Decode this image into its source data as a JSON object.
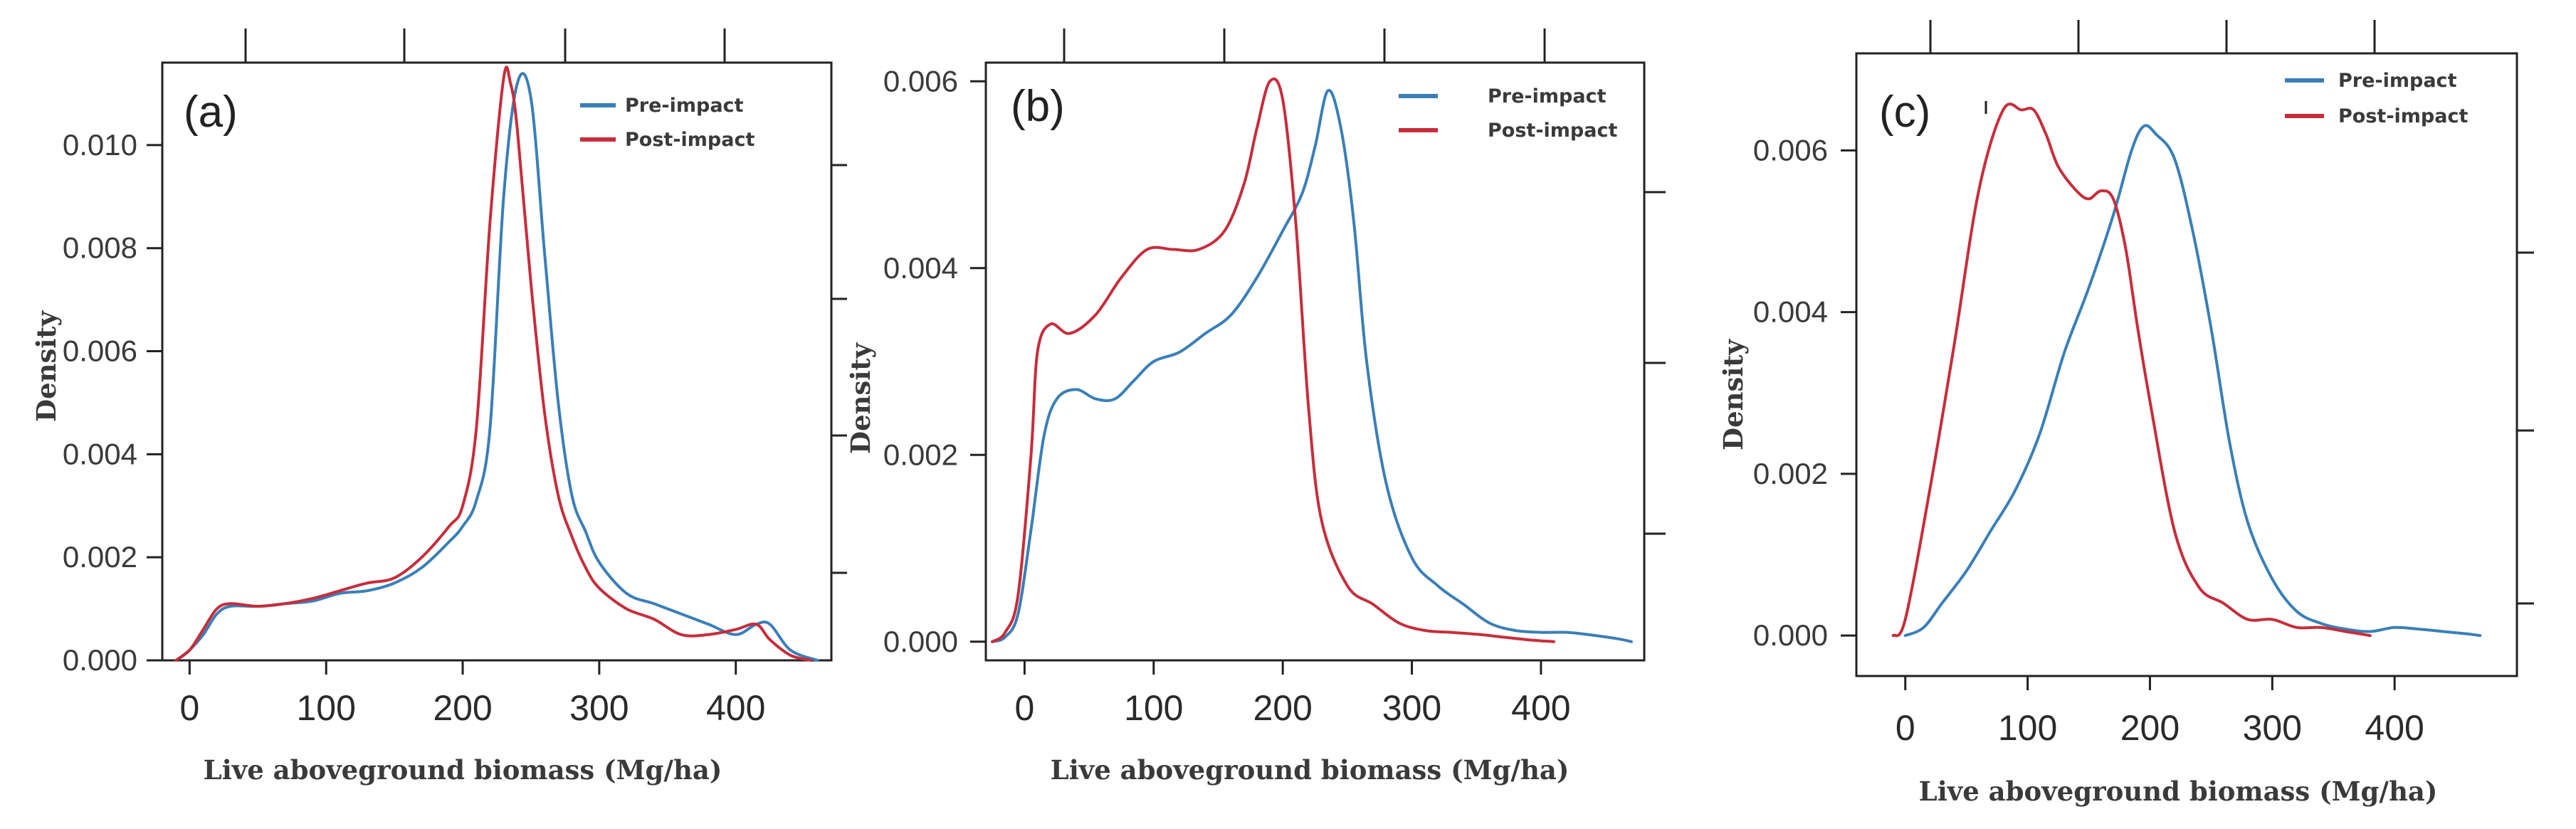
{
  "chart_data": [
    {
      "type": "line",
      "panel_label": "(a)",
      "xlabel": "Live aboveground biomass (Mg/ha)",
      "ylabel": "Density",
      "xlim": [
        -20,
        470
      ],
      "ylim": [
        0,
        0.0116
      ],
      "x_ticks": [
        0,
        100,
        200,
        300,
        400
      ],
      "y_ticks": [
        0.0,
        0.002,
        0.004,
        0.006,
        0.008,
        0.01
      ],
      "y_tick_labels": [
        "0.000",
        "0.002",
        "0.004",
        "0.006",
        "0.008",
        "0.010"
      ],
      "legend": [
        "Pre-impact",
        "Post-impact"
      ],
      "series": [
        {
          "name": "Pre-impact",
          "color": "#3a7fb8",
          "x": [
            -10,
            0,
            10,
            20,
            30,
            50,
            70,
            90,
            110,
            130,
            150,
            170,
            190,
            200,
            210,
            220,
            230,
            240,
            250,
            260,
            270,
            280,
            290,
            300,
            320,
            340,
            360,
            380,
            400,
            415,
            425,
            440,
            460
          ],
          "y": [
            0.0,
            0.0002,
            0.0005,
            0.0009,
            0.00105,
            0.00105,
            0.0011,
            0.00115,
            0.0013,
            0.00135,
            0.0015,
            0.0018,
            0.0023,
            0.0026,
            0.0031,
            0.0045,
            0.009,
            0.0112,
            0.0109,
            0.0079,
            0.005,
            0.0032,
            0.0025,
            0.0019,
            0.0013,
            0.0011,
            0.0009,
            0.0007,
            0.0005,
            0.0007,
            0.0007,
            0.0002,
            0.0
          ]
        },
        {
          "name": "Post-impact",
          "color": "#c72d3b",
          "x": [
            -10,
            0,
            10,
            20,
            30,
            50,
            70,
            90,
            110,
            130,
            150,
            170,
            190,
            200,
            210,
            220,
            230,
            235,
            240,
            250,
            260,
            270,
            280,
            290,
            300,
            320,
            340,
            360,
            380,
            400,
            415,
            425,
            440,
            455
          ],
          "y": [
            0.0,
            0.0002,
            0.0006,
            0.001,
            0.0011,
            0.00105,
            0.0011,
            0.0012,
            0.00135,
            0.0015,
            0.0016,
            0.002,
            0.0026,
            0.003,
            0.0045,
            0.0085,
            0.0113,
            0.0112,
            0.0103,
            0.0073,
            0.0048,
            0.0032,
            0.0024,
            0.0018,
            0.0014,
            0.001,
            0.0008,
            0.0005,
            0.0005,
            0.0006,
            0.0007,
            0.0004,
            0.0001,
            0.0
          ]
        }
      ]
    },
    {
      "type": "line",
      "panel_label": "(b)",
      "xlabel": "Live aboveground biomass (Mg/ha)",
      "ylabel": "Density",
      "xlim": [
        -30,
        480
      ],
      "ylim": [
        -0.0002,
        0.0062
      ],
      "x_ticks": [
        0,
        100,
        200,
        300,
        400
      ],
      "y_ticks": [
        0.0,
        0.002,
        0.004,
        0.006
      ],
      "y_tick_labels": [
        "0.000",
        "0.002",
        "0.004",
        "0.006"
      ],
      "legend": [
        "Pre-impact",
        "Post-impact"
      ],
      "series": [
        {
          "name": "Pre-impact",
          "color": "#3a7fb8",
          "x": [
            -25,
            -15,
            -5,
            5,
            15,
            25,
            40,
            55,
            70,
            85,
            100,
            120,
            140,
            160,
            180,
            200,
            215,
            225,
            235,
            245,
            255,
            265,
            280,
            300,
            320,
            340,
            360,
            380,
            400,
            420,
            440,
            460,
            470
          ],
          "y": [
            0.0,
            5e-05,
            0.0003,
            0.0012,
            0.0022,
            0.0026,
            0.0027,
            0.0026,
            0.0026,
            0.0028,
            0.003,
            0.0031,
            0.0033,
            0.0035,
            0.0039,
            0.0044,
            0.0048,
            0.0053,
            0.0059,
            0.0055,
            0.0045,
            0.003,
            0.0017,
            0.0009,
            0.0006,
            0.0004,
            0.0002,
            0.00012,
            0.0001,
            0.0001,
            7e-05,
            3e-05,
            0.0
          ]
        },
        {
          "name": "Post-impact",
          "color": "#c72d3b",
          "x": [
            -25,
            -15,
            -5,
            5,
            10,
            20,
            35,
            55,
            75,
            95,
            115,
            135,
            155,
            170,
            180,
            190,
            200,
            210,
            220,
            230,
            250,
            270,
            290,
            310,
            330,
            350,
            370,
            390,
            410
          ],
          "y": [
            0.0,
            0.0001,
            0.0005,
            0.002,
            0.0031,
            0.0034,
            0.0033,
            0.0035,
            0.0039,
            0.0042,
            0.0042,
            0.0042,
            0.0044,
            0.0049,
            0.0055,
            0.006,
            0.0058,
            0.0045,
            0.0025,
            0.0013,
            0.0006,
            0.0004,
            0.0002,
            0.00012,
            0.0001,
            8e-05,
            5e-05,
            2e-05,
            0.0
          ]
        }
      ]
    },
    {
      "type": "line",
      "panel_label": "(c)",
      "xlabel": "Live aboveground biomass (Mg/ha)",
      "ylabel": "Density",
      "xlim": [
        -40,
        500
      ],
      "ylim": [
        -0.0005,
        0.0072
      ],
      "x_ticks": [
        0,
        100,
        200,
        300,
        400
      ],
      "y_ticks": [
        0.0,
        0.002,
        0.004,
        0.006
      ],
      "y_tick_labels": [
        "0.000",
        "0.002",
        "0.004",
        "0.006"
      ],
      "legend": [
        "Pre-impact",
        "Post-impact"
      ],
      "series": [
        {
          "name": "Pre-impact",
          "color": "#3a7fb8",
          "x": [
            0,
            15,
            30,
            50,
            70,
            90,
            110,
            130,
            150,
            170,
            185,
            195,
            205,
            220,
            235,
            250,
            265,
            280,
            300,
            320,
            340,
            360,
            380,
            400,
            420,
            440,
            460,
            470
          ],
          "y": [
            0.0,
            0.0001,
            0.0004,
            0.0008,
            0.0013,
            0.0018,
            0.0025,
            0.0035,
            0.0043,
            0.0052,
            0.006,
            0.0063,
            0.0062,
            0.0059,
            0.005,
            0.0038,
            0.0024,
            0.0014,
            0.0007,
            0.0003,
            0.00015,
            8e-05,
            5e-05,
            0.0001,
            8e-05,
            5e-05,
            2e-05,
            0.0
          ]
        },
        {
          "name": "Post-impact",
          "color": "#c72d3b",
          "x": [
            -10,
            0,
            20,
            40,
            60,
            80,
            95,
            105,
            115,
            125,
            140,
            150,
            160,
            170,
            180,
            190,
            200,
            220,
            240,
            260,
            280,
            300,
            320,
            340,
            360,
            380
          ],
          "y": [
            0.0,
            0.0002,
            0.0018,
            0.0036,
            0.0055,
            0.0065,
            0.0065,
            0.0065,
            0.0062,
            0.0058,
            0.0055,
            0.0054,
            0.0055,
            0.0054,
            0.0048,
            0.0038,
            0.0029,
            0.0013,
            0.0006,
            0.0004,
            0.0002,
            0.0002,
            0.0001,
            0.0001,
            5e-05,
            0.0
          ]
        }
      ]
    }
  ]
}
